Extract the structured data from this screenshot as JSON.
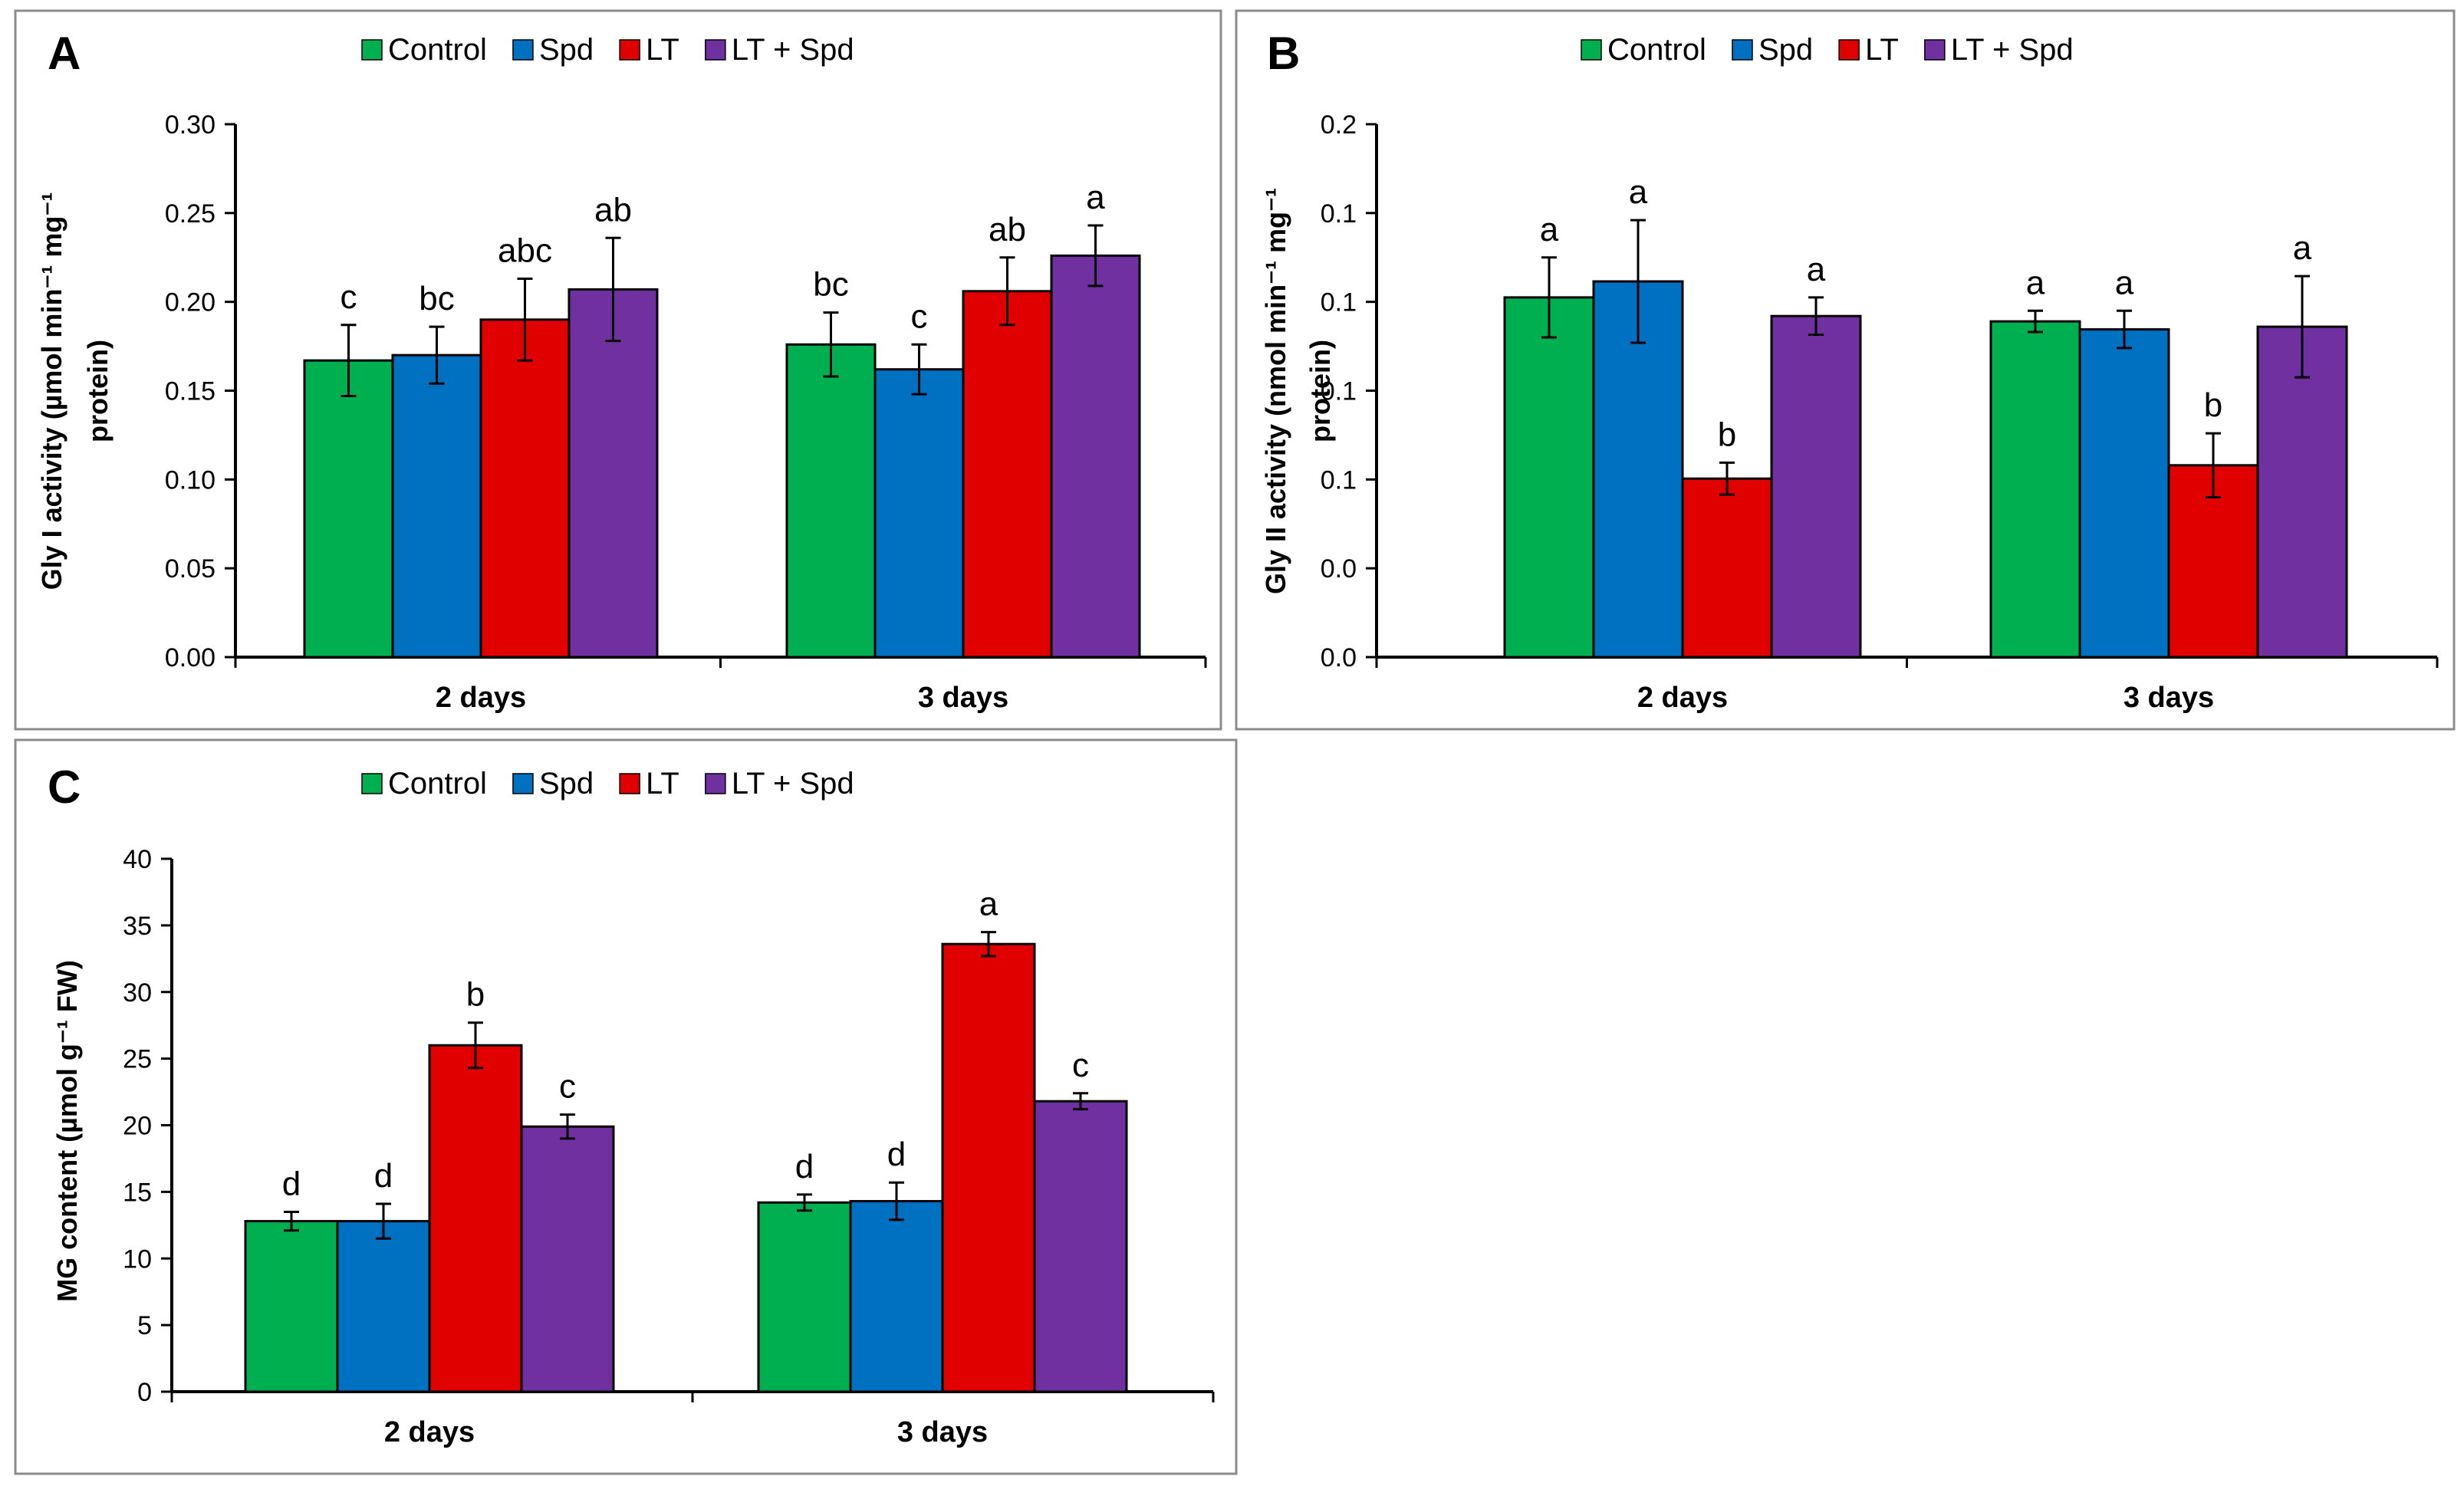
{
  "figure": {
    "legend": [
      "Control",
      "Spd",
      "LT",
      "LT + Spd"
    ],
    "colors": [
      "#00B050",
      "#0070C0",
      "#E00000",
      "#7030A0"
    ]
  },
  "chart_data": [
    {
      "panel": "A",
      "type": "bar",
      "ylabel_line1": "Gly I activity (µmol min⁻¹ mg⁻¹",
      "ylabel_line2": "protein)",
      "categories": [
        "2 days",
        "3 days"
      ],
      "ylim": [
        0,
        0.3
      ],
      "ticks": [
        "0.00",
        "0.05",
        "0.10",
        "0.15",
        "0.20",
        "0.25",
        "0.30"
      ],
      "series": [
        {
          "name": "Control",
          "values": [
            0.167,
            0.176
          ],
          "errors": [
            0.02,
            0.018
          ],
          "letters": [
            "c",
            "bc"
          ]
        },
        {
          "name": "Spd",
          "values": [
            0.17,
            0.162
          ],
          "errors": [
            0.016,
            0.014
          ],
          "letters": [
            "bc",
            "c"
          ]
        },
        {
          "name": "LT",
          "values": [
            0.19,
            0.206
          ],
          "errors": [
            0.023,
            0.019
          ],
          "letters": [
            "abc",
            "ab"
          ]
        },
        {
          "name": "LT + Spd",
          "values": [
            0.207,
            0.226
          ],
          "errors": [
            0.029,
            0.017
          ],
          "letters": [
            "ab",
            "a"
          ]
        }
      ]
    },
    {
      "panel": "B",
      "type": "bar",
      "ylabel_line1": "Gly II activity (nmol min⁻¹ mg⁻¹",
      "ylabel_line2": "protein)",
      "categories": [
        "2 days",
        "3 days"
      ],
      "ylim": [
        0,
        0.2
      ],
      "ticks": [
        "0.0",
        "0.0",
        "0.1",
        "0.1",
        "0.1",
        "0.1",
        "0.2"
      ],
      "series": [
        {
          "name": "Control",
          "values": [
            0.135,
            0.126
          ],
          "errors": [
            0.015,
            0.004
          ],
          "letters": [
            "a",
            "a"
          ]
        },
        {
          "name": "Spd",
          "values": [
            0.141,
            0.123
          ],
          "errors": [
            0.023,
            0.007
          ],
          "letters": [
            "a",
            "a"
          ]
        },
        {
          "name": "LT",
          "values": [
            0.067,
            0.072
          ],
          "errors": [
            0.006,
            0.012
          ],
          "letters": [
            "b",
            "b"
          ]
        },
        {
          "name": "LT + Spd",
          "values": [
            0.128,
            0.124
          ],
          "errors": [
            0.007,
            0.019
          ],
          "letters": [
            "a",
            "a"
          ]
        }
      ]
    },
    {
      "panel": "C",
      "type": "bar",
      "ylabel_line1": "MG content  (µmol g⁻¹ FW)",
      "ylabel_line2": "",
      "categories": [
        "2 days",
        "3 days"
      ],
      "ylim": [
        0,
        40
      ],
      "ticks": [
        "0",
        "5",
        "10",
        "15",
        "20",
        "25",
        "30",
        "35",
        "40"
      ],
      "series": [
        {
          "name": "Control",
          "values": [
            12.8,
            14.2
          ],
          "errors": [
            0.7,
            0.6
          ],
          "letters": [
            "d",
            "d"
          ]
        },
        {
          "name": "Spd",
          "values": [
            12.8,
            14.3
          ],
          "errors": [
            1.3,
            1.4
          ],
          "letters": [
            "d",
            "d"
          ]
        },
        {
          "name": "LT",
          "values": [
            26.0,
            33.6
          ],
          "errors": [
            1.7,
            0.9
          ],
          "letters": [
            "b",
            "a"
          ]
        },
        {
          "name": "LT + Spd",
          "values": [
            19.9,
            21.8
          ],
          "errors": [
            0.9,
            0.6
          ],
          "letters": [
            "c",
            "c"
          ]
        }
      ]
    }
  ]
}
